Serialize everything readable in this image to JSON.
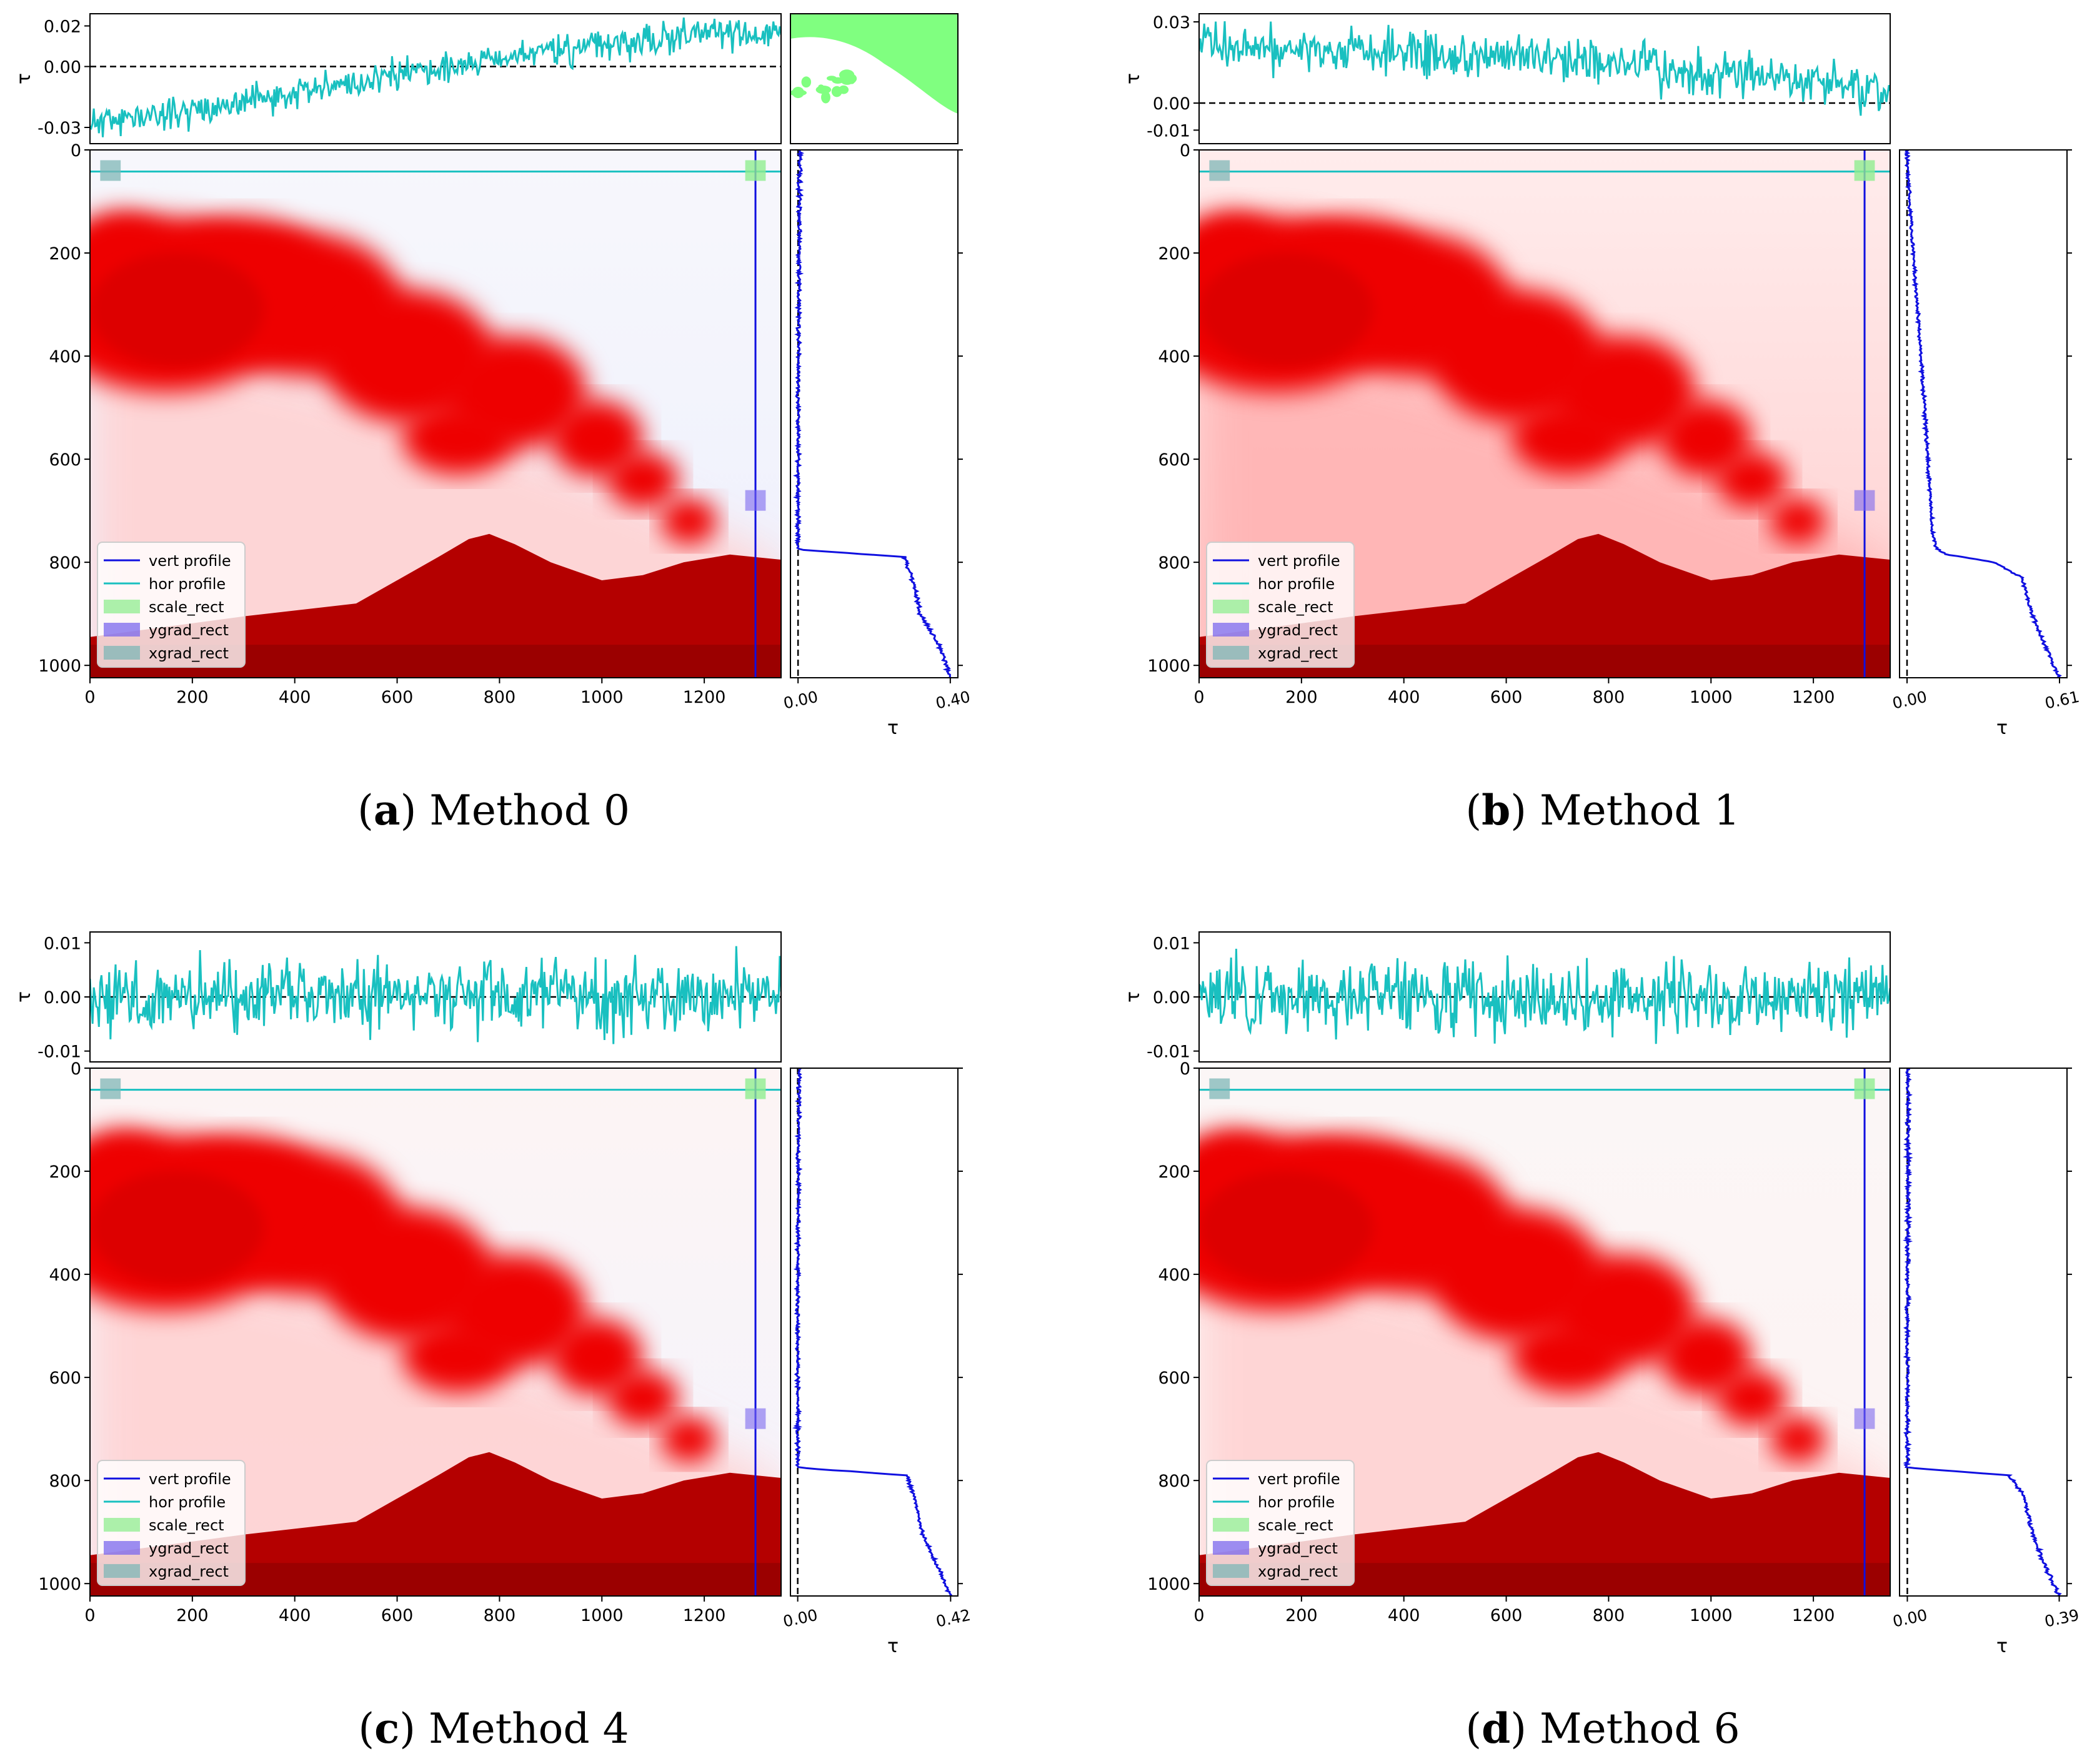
{
  "figure": {
    "panels": [
      {
        "letter": "a",
        "label": " Method 0"
      },
      {
        "letter": "b",
        "label": " Method 1"
      },
      {
        "letter": "c",
        "label": " Method 4"
      },
      {
        "letter": "d",
        "label": " Method 6"
      }
    ]
  },
  "chart_data": [
    {
      "type": "line",
      "title": "Method 0",
      "image_axes": {
        "xlim": [
          0,
          1350
        ],
        "ylim": [
          1024,
          0
        ],
        "xticks": [
          0,
          200,
          400,
          600,
          800,
          1000,
          1200
        ],
        "yticks": [
          0,
          200,
          400,
          600,
          800,
          1000
        ]
      },
      "hor_profile": {
        "ylabel": "τ",
        "yticks": [
          -0.03,
          0.0,
          0.02
        ],
        "tick_labels": [
          "-0.03",
          "0.00",
          "0.02"
        ],
        "ylim": [
          -0.038,
          0.026
        ],
        "trend": [
          [
            0,
            -0.028
          ],
          [
            300,
            -0.018
          ],
          [
            600,
            -0.004
          ],
          [
            900,
            0.008
          ],
          [
            1200,
            0.016
          ],
          [
            1350,
            0.016
          ]
        ],
        "noise": 0.0055,
        "seed": 11
      },
      "vert_profile": {
        "xlabel": "τ",
        "xtick_labels": [
          "0.00",
          "0.40"
        ],
        "xticks": [
          0.0,
          0.4
        ],
        "xlim": [
          -0.02,
          0.42
        ],
        "points": [
          [
            0,
            0.005
          ],
          [
            100,
            0.004
          ],
          [
            300,
            0.002
          ],
          [
            500,
            0.0
          ],
          [
            700,
            0.0
          ],
          [
            775,
            0.0
          ],
          [
            790,
            0.28
          ],
          [
            830,
            0.3
          ],
          [
            900,
            0.32
          ],
          [
            960,
            0.37
          ],
          [
            1024,
            0.4
          ]
        ],
        "noise": 0.004,
        "seed": 21
      },
      "scene": {
        "sky_tint": "#eef0fd",
        "sky_tint_top": "#f7f7fc",
        "thin_plume": "#ffd2d2"
      },
      "inset": "scale_region_mask",
      "legend": [
        "vert profile",
        "hor profile",
        "scale_rect",
        "ygrad_rect",
        "xgrad_rect"
      ]
    },
    {
      "type": "line",
      "title": "Method 1",
      "image_axes": {
        "xlim": [
          0,
          1350
        ],
        "ylim": [
          1024,
          0
        ],
        "xticks": [
          0,
          200,
          400,
          600,
          800,
          1000,
          1200
        ],
        "yticks": [
          0,
          200,
          400,
          600,
          800,
          1000
        ]
      },
      "hor_profile": {
        "ylabel": "τ",
        "yticks": [
          -0.01,
          0.0,
          0.03
        ],
        "tick_labels": [
          "-0.01",
          "0.00",
          "0.03"
        ],
        "ylim": [
          -0.015,
          0.033
        ],
        "trend": [
          [
            0,
            0.022
          ],
          [
            400,
            0.018
          ],
          [
            800,
            0.014
          ],
          [
            1100,
            0.01
          ],
          [
            1350,
            0.004
          ]
        ],
        "noise": 0.006,
        "seed": 12
      },
      "vert_profile": {
        "xlabel": "τ",
        "xtick_labels": [
          "0.00",
          "0.61"
        ],
        "xticks": [
          0.0,
          0.61
        ],
        "xlim": [
          -0.03,
          0.64
        ],
        "points": [
          [
            0,
            0.0
          ],
          [
            100,
            0.01
          ],
          [
            300,
            0.04
          ],
          [
            500,
            0.07
          ],
          [
            650,
            0.09
          ],
          [
            740,
            0.1
          ],
          [
            775,
            0.12
          ],
          [
            785,
            0.16
          ],
          [
            800,
            0.35
          ],
          [
            830,
            0.46
          ],
          [
            900,
            0.5
          ],
          [
            960,
            0.55
          ],
          [
            1024,
            0.61
          ]
        ],
        "noise": 0.005,
        "seed": 22
      },
      "scene": {
        "sky_tint": "#ffcfcf",
        "sky_tint_top": "#ffecec",
        "thin_plume": "#ffb3b3"
      },
      "legend": [
        "vert profile",
        "hor profile",
        "scale_rect",
        "ygrad_rect",
        "xgrad_rect"
      ]
    },
    {
      "type": "line",
      "title": "Method 4",
      "image_axes": {
        "xlim": [
          0,
          1350
        ],
        "ylim": [
          1024,
          0
        ],
        "xticks": [
          0,
          200,
          400,
          600,
          800,
          1000,
          1200
        ],
        "yticks": [
          0,
          200,
          400,
          600,
          800,
          1000
        ]
      },
      "hor_profile": {
        "ylabel": "τ",
        "yticks": [
          -0.01,
          0.0,
          0.01
        ],
        "tick_labels": [
          "-0.01",
          "0.00",
          "0.01"
        ],
        "ylim": [
          -0.012,
          0.012
        ],
        "trend": [
          [
            0,
            0.0
          ],
          [
            1350,
            0.0
          ]
        ],
        "noise": 0.0048,
        "seed": 13
      },
      "vert_profile": {
        "xlabel": "τ",
        "xtick_labels": [
          "0.00",
          "0.42"
        ],
        "xticks": [
          0.0,
          0.42
        ],
        "xlim": [
          -0.02,
          0.44
        ],
        "points": [
          [
            0,
            0.004
          ],
          [
            200,
            0.002
          ],
          [
            500,
            0.0
          ],
          [
            700,
            0.0
          ],
          [
            775,
            0.0
          ],
          [
            790,
            0.3
          ],
          [
            830,
            0.32
          ],
          [
            900,
            0.34
          ],
          [
            960,
            0.38
          ],
          [
            1024,
            0.42
          ]
        ],
        "noise": 0.004,
        "seed": 23
      },
      "scene": {
        "sky_tint": "#f3f3fd",
        "sky_tint_top": "#fdf4f4",
        "thin_plume": "#ffd2d2"
      },
      "legend": [
        "vert profile",
        "hor profile",
        "scale_rect",
        "ygrad_rect",
        "xgrad_rect"
      ]
    },
    {
      "type": "line",
      "title": "Method 6",
      "image_axes": {
        "xlim": [
          0,
          1350
        ],
        "ylim": [
          1024,
          0
        ],
        "xticks": [
          0,
          200,
          400,
          600,
          800,
          1000,
          1200
        ],
        "yticks": [
          0,
          200,
          400,
          600,
          800,
          1000
        ]
      },
      "hor_profile": {
        "ylabel": "τ",
        "yticks": [
          -0.01,
          0.0,
          0.01
        ],
        "tick_labels": [
          "-0.01",
          "0.00",
          "0.01"
        ],
        "ylim": [
          -0.012,
          0.012
        ],
        "trend": [
          [
            0,
            0.0
          ],
          [
            1350,
            0.0
          ]
        ],
        "noise": 0.0048,
        "seed": 14
      },
      "vert_profile": {
        "xlabel": "τ",
        "xtick_labels": [
          "0.00",
          "0.39"
        ],
        "xticks": [
          0.0,
          0.39
        ],
        "xlim": [
          -0.02,
          0.41
        ],
        "points": [
          [
            0,
            0.002
          ],
          [
            200,
            0.002
          ],
          [
            500,
            0.0
          ],
          [
            700,
            0.0
          ],
          [
            775,
            0.0
          ],
          [
            790,
            0.26
          ],
          [
            830,
            0.3
          ],
          [
            900,
            0.32
          ],
          [
            960,
            0.35
          ],
          [
            1024,
            0.39
          ]
        ],
        "noise": 0.004,
        "seed": 24
      },
      "scene": {
        "sky_tint": "#fdf3f3",
        "sky_tint_top": "#fbf6f6",
        "thin_plume": "#ffd2d2"
      },
      "legend": [
        "vert profile",
        "hor profile",
        "scale_rect",
        "ygrad_rect",
        "xgrad_rect"
      ]
    }
  ],
  "colors": {
    "vert": "#1010e0",
    "hor": "#19c0c0",
    "scale_rect": "#90ee90",
    "ygrad_rect": "#7b68ee",
    "xgrad_rect": "#7fb7b7",
    "plume": "#ee0000",
    "plume_dense": "#dd0000",
    "volcano": "#b40000",
    "volcano_dark": "#8b0000",
    "mask_green": "#80ff80"
  }
}
